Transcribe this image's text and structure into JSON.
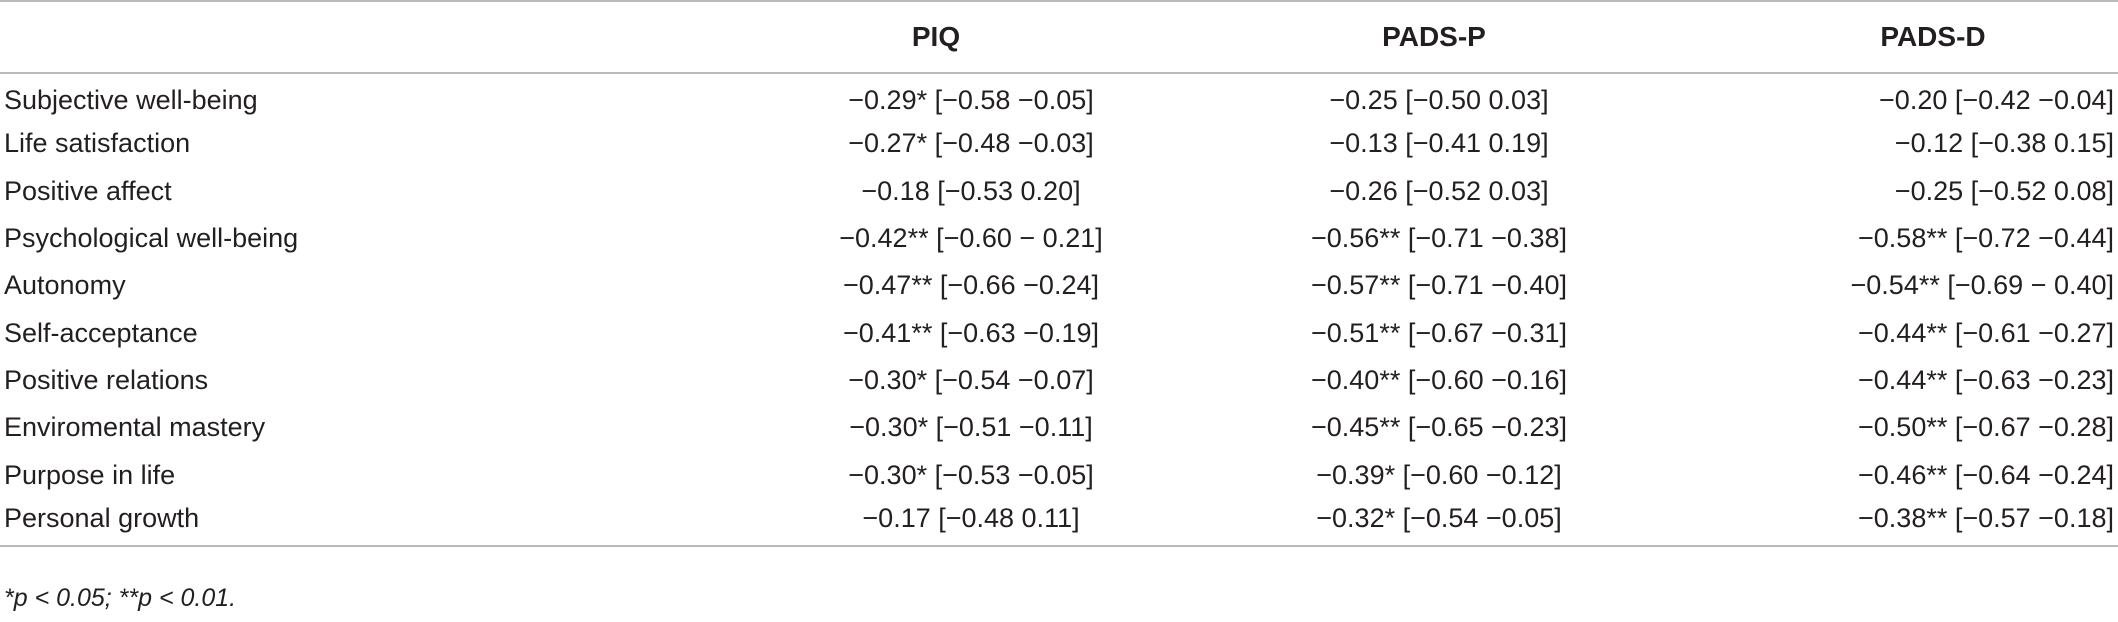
{
  "table": {
    "headers": [
      "",
      "PIQ",
      "PADS-P",
      "PADS-D"
    ],
    "rows": [
      {
        "label": "Subjective well-being",
        "piq": "−0.29* [−0.58  −0.05]",
        "pads_p": "−0.25 [−0.50  0.03]",
        "pads_d": "−0.20 [−0.42  −0.04]"
      },
      {
        "label": "Life satisfaction",
        "piq": "−0.27* [−0.48  −0.03]",
        "pads_p": "−0.13 [−0.41  0.19]",
        "pads_d": "−0.12 [−0.38  0.15]"
      },
      {
        "label": "Positive affect",
        "piq": "−0.18 [−0.53  0.20]",
        "pads_p": "−0.26 [−0.52  0.03]",
        "pads_d": "−0.25 [−0.52  0.08]"
      },
      {
        "label": "Psychological well-being",
        "piq": "−0.42** [−0.60  − 0.21]",
        "pads_p": "−0.56** [−0.71  −0.38]",
        "pads_d": "−0.58** [−0.72  −0.44]"
      },
      {
        "label": "Autonomy",
        "piq": "−0.47** [−0.66  −0.24]",
        "pads_p": "−0.57** [−0.71  −0.40]",
        "pads_d": "−0.54** [−0.69  − 0.40]"
      },
      {
        "label": "Self-acceptance",
        "piq": "−0.41** [−0.63  −0.19]",
        "pads_p": "−0.51** [−0.67  −0.31]",
        "pads_d": "−0.44** [−0.61  −0.27]"
      },
      {
        "label": "Positive relations",
        "piq": "−0.30* [−0.54  −0.07]",
        "pads_p": "−0.40** [−0.60  −0.16]",
        "pads_d": "−0.44** [−0.63  −0.23]"
      },
      {
        "label": "Enviromental mastery",
        "piq": "−0.30* [−0.51  −0.11]",
        "pads_p": "−0.45** [−0.65  −0.23]",
        "pads_d": "−0.50** [−0.67  −0.28]"
      },
      {
        "label": "Purpose in life",
        "piq": "−0.30* [−0.53  −0.05]",
        "pads_p": "−0.39* [−0.60  −0.12]",
        "pads_d": "−0.46** [−0.64  −0.24]"
      },
      {
        "label": "Personal growth",
        "piq": "−0.17 [−0.48  0.11]",
        "pads_p": "−0.32* [−0.54  −0.05]",
        "pads_d": "−0.38** [−0.57  −0.18]"
      }
    ]
  },
  "footnote": "*p < 0.05; **p < 0.01."
}
